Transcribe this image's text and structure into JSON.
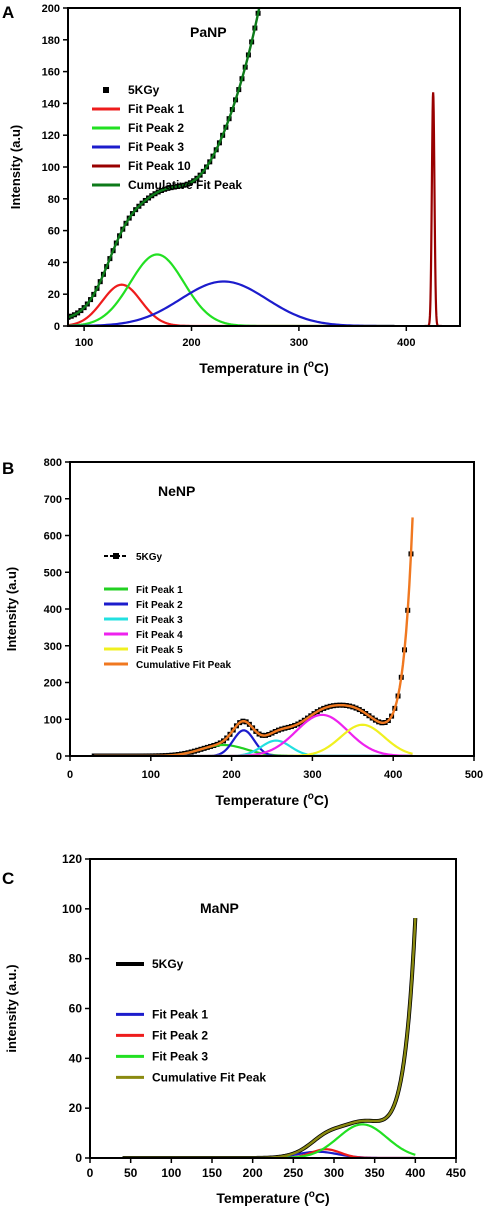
{
  "chart_data": [
    {
      "panel_letter": "A",
      "title": "PaNP",
      "type": "line",
      "xlabel_main": "Temperature in (",
      "xlabel_sup": "o",
      "xlabel_tail": "C)",
      "ylabel": "Intensity (a.u)",
      "xlim": [
        85,
        450
      ],
      "ylim": [
        0,
        200
      ],
      "xticks": [
        "100",
        "200",
        "300",
        "400"
      ],
      "yticks": [
        "0",
        "20",
        "40",
        "60",
        "80",
        "100",
        "120",
        "140",
        "160",
        "180",
        "200"
      ],
      "legend_placement": "upper-left",
      "series": [
        {
          "name": "5KGy",
          "color": "#000000",
          "kind": "markers"
        },
        {
          "name": "Fit Peak 1",
          "color": "#ee1c1c",
          "kind": "gauss",
          "amp": 26,
          "center": 135,
          "sigma": 18
        },
        {
          "name": "Fit Peak 2",
          "color": "#22e022",
          "kind": "gauss",
          "amp": 45,
          "center": 168,
          "sigma": 25
        },
        {
          "name": "Fit Peak 3",
          "color": "#1c1ccc",
          "kind": "gauss",
          "amp": 28,
          "center": 230,
          "sigma": 40
        },
        {
          "name": "Fit Peak 10",
          "color": "#990000",
          "kind": "gauss",
          "amp": 147,
          "center": 425,
          "sigma": 1.2
        },
        {
          "name": "Cumulative Fit Peak",
          "color": "#0d7a1a",
          "kind": "cumulative",
          "tail_amp": 255,
          "tail_k": 0.0205,
          "tail_x0": 280
        }
      ]
    },
    {
      "panel_letter": "B",
      "title": "NeNP",
      "type": "line",
      "xlabel_main": "Temperature (",
      "xlabel_sup": "o",
      "xlabel_tail": "C)",
      "ylabel": "Intensity (a.u)",
      "xlim": [
        0,
        500
      ],
      "ylim": [
        0,
        800
      ],
      "xticks": [
        "0",
        "100",
        "200",
        "300",
        "400",
        "500"
      ],
      "yticks": [
        "0",
        "100",
        "200",
        "300",
        "400",
        "500",
        "600",
        "700",
        "800"
      ],
      "legend_placement": "upper-left",
      "series": [
        {
          "name": "5KGy",
          "color": "#000000",
          "kind": "markers"
        },
        {
          "name": "Fit Peak 1",
          "color": "#22d022",
          "kind": "gauss",
          "amp": 30,
          "center": 190,
          "sigma": 28
        },
        {
          "name": "Fit Peak 2",
          "color": "#1c1ccc",
          "kind": "gauss",
          "amp": 70,
          "center": 215,
          "sigma": 13
        },
        {
          "name": "Fit Peak 3",
          "color": "#22e0e0",
          "kind": "gauss",
          "amp": 42,
          "center": 255,
          "sigma": 18
        },
        {
          "name": "Fit Peak 4",
          "color": "#ee22ee",
          "kind": "gauss",
          "amp": 112,
          "center": 312,
          "sigma": 32
        },
        {
          "name": "Fit Peak 5",
          "color": "#f0f020",
          "kind": "gauss",
          "amp": 85,
          "center": 362,
          "sigma": 27
        },
        {
          "name": "Cumulative Fit Peak",
          "color": "#f07820",
          "kind": "cumulative",
          "tail_amp": 700,
          "tail_k": 0.085,
          "tail_x0": 425
        }
      ]
    },
    {
      "panel_letter": "C",
      "title": "MaNP",
      "type": "line",
      "xlabel_main": "Temperature (",
      "xlabel_sup": "o",
      "xlabel_tail": "C)",
      "ylabel": "intensity (a.u.)",
      "xlim": [
        0,
        450
      ],
      "ylim": [
        0,
        120
      ],
      "xticks": [
        "0",
        "50",
        "100",
        "150",
        "200",
        "250",
        "300",
        "350",
        "400",
        "450"
      ],
      "yticks": [
        "0",
        "20",
        "40",
        "60",
        "80",
        "100",
        "120"
      ],
      "legend_placement": "upper-left",
      "series": [
        {
          "name": "5KGy",
          "color": "#000000",
          "kind": "thick"
        },
        {
          "name": "Fit Peak 1",
          "color": "#1c1ccc",
          "kind": "gauss",
          "amp": 2.5,
          "center": 280,
          "sigma": 25
        },
        {
          "name": "Fit Peak 2",
          "color": "#ee1c1c",
          "kind": "gauss",
          "amp": 3.5,
          "center": 290,
          "sigma": 18
        },
        {
          "name": "Fit Peak 3",
          "color": "#22e022",
          "kind": "gauss",
          "amp": 13.5,
          "center": 335,
          "sigma": 30
        },
        {
          "name": "Cumulative Fit Peak",
          "color": "#8a8a10",
          "kind": "cumulative",
          "tail_amp": 95,
          "tail_k": 0.07,
          "tail_x0": 400
        }
      ]
    }
  ]
}
